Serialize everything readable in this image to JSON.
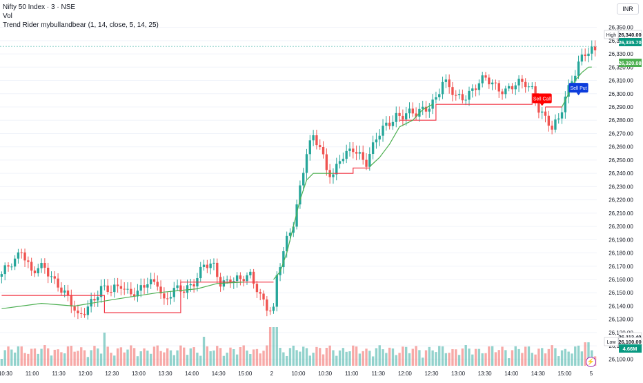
{
  "header": {
    "symbol": "Nifty 50 Index · 3 · NSE",
    "volume_label": "Vol",
    "indicator": "Trend Rider mybullandbear (1, 14, close, 5, 14, 25)",
    "currency": "INR"
  },
  "colors": {
    "up": "#26a69a",
    "down": "#ef5350",
    "trend_bear": "#f23645",
    "trend_bull": "#4caf50",
    "price_tag": "#089981",
    "sell_call_bg": "#ff0000",
    "sell_put_bg": "#0c3cdc",
    "flash_icon": "#9c27b0"
  },
  "chart_data": {
    "type": "candlestick",
    "title": "Nifty 50 Index · 3 · NSE",
    "y_range": [
      26095,
      26355
    ],
    "y_ticks": [
      26100,
      26110,
      26120,
      26130,
      26140,
      26150,
      26160,
      26170,
      26180,
      26190,
      26200,
      26210,
      26220,
      26230,
      26240,
      26250,
      26260,
      26270,
      26280,
      26290,
      26300,
      26310,
      26320,
      26330,
      26340,
      26350
    ],
    "y_tick_labels": [
      "26,100.00",
      "26,110.00",
      "26,120.00",
      "26,130.00",
      "26,140.00",
      "26,150.00",
      "26,160.00",
      "26,170.00",
      "26,180.00",
      "26,190.00",
      "26,200.00",
      "26,210.00",
      "26,220.00",
      "26,230.00",
      "26,240.00",
      "26,250.00",
      "26,260.00",
      "26,270.00",
      "26,280.00",
      "26,290.00",
      "26,300.00",
      "26,310.00",
      "26,320.00",
      "26,330.00",
      "26,340.00",
      "26,350.00"
    ],
    "x_tick_labels": [
      "10:30",
      "11:00",
      "11:30",
      "12:00",
      "12:30",
      "13:00",
      "13:30",
      "14:00",
      "14:30",
      "15:00",
      "2",
      "10:00",
      "10:30",
      "11:00",
      "11:30",
      "12:00",
      "12:30",
      "13:00",
      "13:30",
      "14:00",
      "14:30",
      "15:00",
      "5"
    ],
    "waypoints": [
      [
        0,
        26162
      ],
      [
        4,
        26175
      ],
      [
        6,
        26185
      ],
      [
        9,
        26165
      ],
      [
        13,
        26168
      ],
      [
        17,
        26158
      ],
      [
        20,
        26145
      ],
      [
        23,
        26130
      ],
      [
        27,
        26145
      ],
      [
        30,
        26152
      ],
      [
        33,
        26150
      ],
      [
        36,
        26158
      ],
      [
        38,
        26152
      ],
      [
        41,
        26148
      ],
      [
        44,
        26157
      ],
      [
        47,
        26160
      ],
      [
        49,
        26144
      ],
      [
        52,
        26150
      ],
      [
        55,
        26152
      ],
      [
        58,
        26160
      ],
      [
        61,
        26170
      ],
      [
        64,
        26168
      ],
      [
        66,
        26158
      ],
      [
        69,
        26162
      ],
      [
        72,
        26158
      ],
      [
        75,
        26162
      ],
      [
        77,
        26155
      ],
      [
        80,
        26140
      ],
      [
        82,
        26135
      ],
      [
        83,
        26160
      ],
      [
        86,
        26190
      ],
      [
        88,
        26205
      ],
      [
        90,
        26230
      ],
      [
        92,
        26255
      ],
      [
        94,
        26265
      ],
      [
        96,
        26260
      ],
      [
        98,
        26245
      ],
      [
        100,
        26240
      ],
      [
        102,
        26250
      ],
      [
        104,
        26252
      ],
      [
        106,
        26258
      ],
      [
        108,
        26255
      ],
      [
        110,
        26250
      ],
      [
        113,
        26265
      ],
      [
        116,
        26275
      ],
      [
        119,
        26285
      ],
      [
        122,
        26285
      ],
      [
        125,
        26283
      ],
      [
        128,
        26290
      ],
      [
        131,
        26298
      ],
      [
        133,
        26308
      ],
      [
        135,
        26303
      ],
      [
        137,
        26297
      ],
      [
        140,
        26300
      ],
      [
        143,
        26305
      ],
      [
        146,
        26310
      ],
      [
        149,
        26307
      ],
      [
        152,
        26303
      ],
      [
        155,
        26305
      ],
      [
        158,
        26308
      ],
      [
        160,
        26305
      ],
      [
        162,
        26290
      ],
      [
        164,
        26280
      ],
      [
        166,
        26272
      ],
      [
        168,
        26280
      ],
      [
        170,
        26300
      ],
      [
        172,
        26312
      ],
      [
        174,
        26322
      ],
      [
        176,
        26328
      ],
      [
        178,
        26332
      ]
    ],
    "trend_line": {
      "bear_segments": [
        [
          [
            0,
            26148
          ],
          [
            31,
            26148
          ],
          [
            31,
            26135
          ],
          [
            54,
            26135
          ],
          [
            54,
            26158
          ],
          [
            76,
            26158
          ],
          [
            82,
            26158
          ]
        ],
        [
          [
            100,
            26240
          ],
          [
            106,
            26240
          ],
          [
            106,
            26244
          ],
          [
            111,
            26244
          ]
        ],
        [
          [
            120,
            26280
          ],
          [
            131,
            26280
          ],
          [
            131,
            26292
          ],
          [
            160,
            26292
          ],
          [
            160,
            26300
          ],
          [
            162,
            26300
          ]
        ],
        [
          [
            164,
            26290
          ],
          [
            169,
            26290
          ]
        ]
      ],
      "bull_segments": [
        [
          [
            0,
            26138
          ],
          [
            12,
            26142
          ],
          [
            22,
            26140
          ],
          [
            34,
            26145
          ],
          [
            47,
            26150
          ],
          [
            59,
            26153
          ],
          [
            65,
            26157
          ],
          [
            73,
            26158
          ]
        ],
        [
          [
            82,
            26160
          ],
          [
            84,
            26166
          ],
          [
            86,
            26180
          ],
          [
            88,
            26200
          ],
          [
            90,
            26220
          ],
          [
            92,
            26235
          ],
          [
            94,
            26240
          ],
          [
            100,
            26240
          ]
        ],
        [
          [
            111,
            26245
          ],
          [
            114,
            26252
          ],
          [
            117,
            26262
          ],
          [
            120,
            26275
          ],
          [
            124,
            26280
          ],
          [
            127,
            26288
          ],
          [
            130,
            26292
          ]
        ],
        [
          [
            169,
            26290
          ],
          [
            171,
            26300
          ],
          [
            173,
            26310
          ],
          [
            175,
            26316
          ],
          [
            177,
            26320
          ],
          [
            178,
            26320.08
          ]
        ]
      ]
    },
    "signals": [
      {
        "label": "Sell Call",
        "bar": 163,
        "price": 26296
      },
      {
        "label": "Sell Put",
        "bar": 174,
        "price": 26304
      }
    ],
    "markers": [
      {
        "label": "High",
        "value": "26,340.00",
        "price": 26340
      },
      {
        "label": "",
        "value": "26,335.70",
        "price": 26335.7
      },
      {
        "label": "",
        "value": "26,320.08",
        "price": 26320.08
      },
      {
        "label": "",
        "value": "26,113.40",
        "price": 26113.4
      },
      {
        "label": "Low",
        "value": "26,100.00",
        "price": 26100
      },
      {
        "label": "",
        "value": "4.66M",
        "price": 26097
      }
    ],
    "volume_label": "Vol",
    "current_volume": "4.66M"
  }
}
